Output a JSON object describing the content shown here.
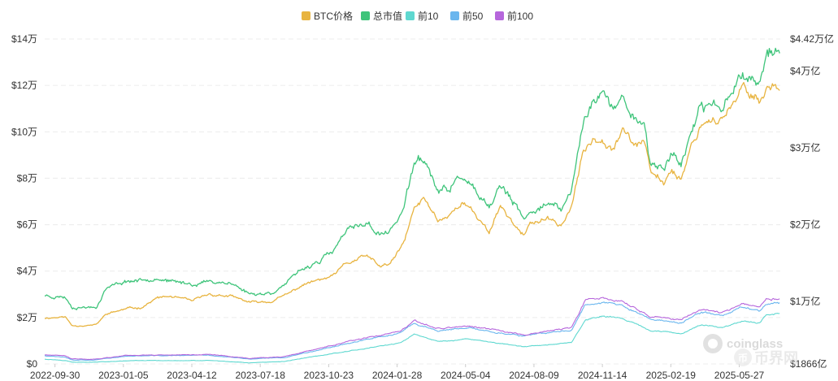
{
  "chart_data": {
    "type": "line",
    "legend_position": "top-center",
    "grid": true,
    "x_ticks": [
      "2022-09-30",
      "2023-01-05",
      "2023-04-12",
      "2023-07-18",
      "2023-10-23",
      "2024-01-28",
      "2024-05-04",
      "2024-08-09",
      "2024-11-14",
      "2025-02-19",
      "2025-05-27"
    ],
    "x_range_days": [
      0,
      1075
    ],
    "left_axis": {
      "ticks": [
        {
          "value": 0,
          "label": "$0"
        },
        {
          "value": 20000,
          "label": "$2万"
        },
        {
          "value": 40000,
          "label": "$4万"
        },
        {
          "value": 60000,
          "label": "$6万"
        },
        {
          "value": 80000,
          "label": "$8万"
        },
        {
          "value": 100000,
          "label": "$10万"
        },
        {
          "value": 120000,
          "label": "$12万"
        },
        {
          "value": 140000,
          "label": "$14万"
        }
      ],
      "ylim": [
        0,
        140000
      ]
    },
    "right_axis": {
      "ticks": [
        {
          "value": 0.1866,
          "label": "$1866亿"
        },
        {
          "value": 1,
          "label": "$1万亿"
        },
        {
          "value": 2,
          "label": "$2万亿"
        },
        {
          "value": 3,
          "label": "$3万亿"
        },
        {
          "value": 4,
          "label": "$4万亿"
        },
        {
          "value": 4.42,
          "label": "$4.42万亿"
        }
      ],
      "ylim": [
        0.1866,
        4.42
      ],
      "unit": "万亿 USD"
    },
    "series": [
      {
        "name": "BTC价格",
        "color": "#e8b440",
        "axis": "left",
        "noise": 0.022,
        "seed": 11,
        "points": [
          [
            -30,
            23000
          ],
          [
            0,
            19800
          ],
          [
            30,
            20300
          ],
          [
            40,
            16500
          ],
          [
            75,
            16800
          ],
          [
            90,
            21500
          ],
          [
            120,
            23800
          ],
          [
            140,
            24300
          ],
          [
            165,
            28500
          ],
          [
            185,
            29000
          ],
          [
            215,
            27000
          ],
          [
            240,
            30000
          ],
          [
            270,
            29200
          ],
          [
            300,
            26500
          ],
          [
            330,
            26800
          ],
          [
            355,
            30000
          ],
          [
            380,
            34500
          ],
          [
            420,
            37500
          ],
          [
            440,
            43000
          ],
          [
            470,
            46500
          ],
          [
            490,
            42000
          ],
          [
            505,
            43000
          ],
          [
            525,
            52000
          ],
          [
            540,
            67000
          ],
          [
            555,
            71000
          ],
          [
            575,
            62000
          ],
          [
            590,
            64000
          ],
          [
            610,
            70000
          ],
          [
            630,
            64000
          ],
          [
            650,
            57000
          ],
          [
            665,
            68500
          ],
          [
            685,
            61000
          ],
          [
            700,
            55000
          ],
          [
            710,
            60000
          ],
          [
            730,
            62500
          ],
          [
            755,
            60000
          ],
          [
            770,
            67500
          ],
          [
            785,
            89000
          ],
          [
            800,
            96500
          ],
          [
            815,
            98000
          ],
          [
            830,
            94000
          ],
          [
            845,
            102000
          ],
          [
            860,
            95000
          ],
          [
            875,
            96000
          ],
          [
            885,
            82500
          ],
          [
            905,
            78000
          ],
          [
            915,
            84000
          ],
          [
            930,
            80000
          ],
          [
            945,
            94000
          ],
          [
            960,
            104000
          ],
          [
            975,
            106000
          ],
          [
            990,
            105500
          ],
          [
            1005,
            110000
          ],
          [
            1020,
            118500
          ],
          [
            1035,
            117000
          ],
          [
            1045,
            113000
          ],
          [
            1055,
            119000
          ]
        ]
      },
      {
        "name": "总市值",
        "color": "#3ec47a",
        "axis": "right",
        "noise": 0.025,
        "seed": 23,
        "points": [
          [
            -30,
            1.2
          ],
          [
            0,
            1.08
          ],
          [
            30,
            1.06
          ],
          [
            40,
            0.93
          ],
          [
            75,
            0.93
          ],
          [
            90,
            1.18
          ],
          [
            120,
            1.27
          ],
          [
            140,
            1.28
          ],
          [
            165,
            1.32
          ],
          [
            185,
            1.25
          ],
          [
            215,
            1.23
          ],
          [
            240,
            1.26
          ],
          [
            270,
            1.25
          ],
          [
            300,
            1.1
          ],
          [
            330,
            1.11
          ],
          [
            355,
            1.25
          ],
          [
            380,
            1.43
          ],
          [
            420,
            1.63
          ],
          [
            440,
            1.9
          ],
          [
            470,
            2.03
          ],
          [
            490,
            1.87
          ],
          [
            505,
            1.92
          ],
          [
            525,
            2.22
          ],
          [
            540,
            2.8
          ],
          [
            555,
            2.85
          ],
          [
            575,
            2.42
          ],
          [
            590,
            2.45
          ],
          [
            610,
            2.65
          ],
          [
            630,
            2.4
          ],
          [
            650,
            2.17
          ],
          [
            665,
            2.52
          ],
          [
            685,
            2.28
          ],
          [
            700,
            2.05
          ],
          [
            710,
            2.15
          ],
          [
            730,
            2.3
          ],
          [
            755,
            2.18
          ],
          [
            770,
            2.45
          ],
          [
            785,
            3.25
          ],
          [
            800,
            3.65
          ],
          [
            815,
            3.72
          ],
          [
            830,
            3.5
          ],
          [
            845,
            3.65
          ],
          [
            860,
            3.42
          ],
          [
            875,
            3.35
          ],
          [
            885,
            2.82
          ],
          [
            905,
            2.72
          ],
          [
            915,
            2.95
          ],
          [
            930,
            2.8
          ],
          [
            945,
            3.2
          ],
          [
            960,
            3.48
          ],
          [
            975,
            3.58
          ],
          [
            990,
            3.52
          ],
          [
            1005,
            3.82
          ],
          [
            1020,
            3.98
          ],
          [
            1035,
            3.9
          ],
          [
            1045,
            3.85
          ],
          [
            1055,
            4.25
          ]
        ]
      },
      {
        "name": "前10",
        "color": "#5fd8d0",
        "axis": "right",
        "noise": 0.015,
        "seed": 31,
        "points": [
          [
            -30,
            0.27
          ],
          [
            30,
            0.23
          ],
          [
            40,
            0.21
          ],
          [
            75,
            0.21
          ],
          [
            120,
            0.23
          ],
          [
            240,
            0.23
          ],
          [
            300,
            0.2
          ],
          [
            350,
            0.22
          ],
          [
            440,
            0.35
          ],
          [
            520,
            0.46
          ],
          [
            540,
            0.57
          ],
          [
            575,
            0.48
          ],
          [
            620,
            0.51
          ],
          [
            700,
            0.41
          ],
          [
            770,
            0.47
          ],
          [
            790,
            0.76
          ],
          [
            815,
            0.82
          ],
          [
            845,
            0.78
          ],
          [
            885,
            0.62
          ],
          [
            930,
            0.58
          ],
          [
            960,
            0.7
          ],
          [
            990,
            0.66
          ],
          [
            1020,
            0.75
          ],
          [
            1045,
            0.72
          ],
          [
            1055,
            0.84
          ]
        ]
      },
      {
        "name": "前50",
        "color": "#6ab6ee",
        "axis": "right",
        "noise": 0.018,
        "seed": 37,
        "points": [
          [
            -30,
            0.31
          ],
          [
            30,
            0.28
          ],
          [
            40,
            0.24
          ],
          [
            75,
            0.24
          ],
          [
            120,
            0.29
          ],
          [
            240,
            0.3
          ],
          [
            300,
            0.25
          ],
          [
            350,
            0.27
          ],
          [
            440,
            0.45
          ],
          [
            520,
            0.59
          ],
          [
            540,
            0.71
          ],
          [
            575,
            0.62
          ],
          [
            620,
            0.65
          ],
          [
            700,
            0.55
          ],
          [
            770,
            0.63
          ],
          [
            790,
            0.96
          ],
          [
            815,
            1.0
          ],
          [
            845,
            0.94
          ],
          [
            885,
            0.77
          ],
          [
            930,
            0.72
          ],
          [
            960,
            0.86
          ],
          [
            990,
            0.82
          ],
          [
            1020,
            0.93
          ],
          [
            1045,
            0.88
          ],
          [
            1055,
            0.98
          ]
        ]
      },
      {
        "name": "前100",
        "color": "#b666dc",
        "axis": "right",
        "noise": 0.018,
        "seed": 41,
        "points": [
          [
            -30,
            0.32
          ],
          [
            30,
            0.29
          ],
          [
            40,
            0.25
          ],
          [
            75,
            0.25
          ],
          [
            120,
            0.3
          ],
          [
            240,
            0.31
          ],
          [
            300,
            0.26
          ],
          [
            350,
            0.28
          ],
          [
            440,
            0.47
          ],
          [
            520,
            0.61
          ],
          [
            540,
            0.74
          ],
          [
            575,
            0.65
          ],
          [
            620,
            0.68
          ],
          [
            700,
            0.57
          ],
          [
            770,
            0.66
          ],
          [
            790,
            1.01
          ],
          [
            815,
            1.05
          ],
          [
            845,
            0.99
          ],
          [
            885,
            0.81
          ],
          [
            930,
            0.76
          ],
          [
            960,
            0.9
          ],
          [
            990,
            0.86
          ],
          [
            1020,
            0.98
          ],
          [
            1045,
            0.92
          ],
          [
            1055,
            1.03
          ]
        ]
      }
    ]
  },
  "watermark": {
    "brand": "coinglass",
    "site": "币界网"
  }
}
